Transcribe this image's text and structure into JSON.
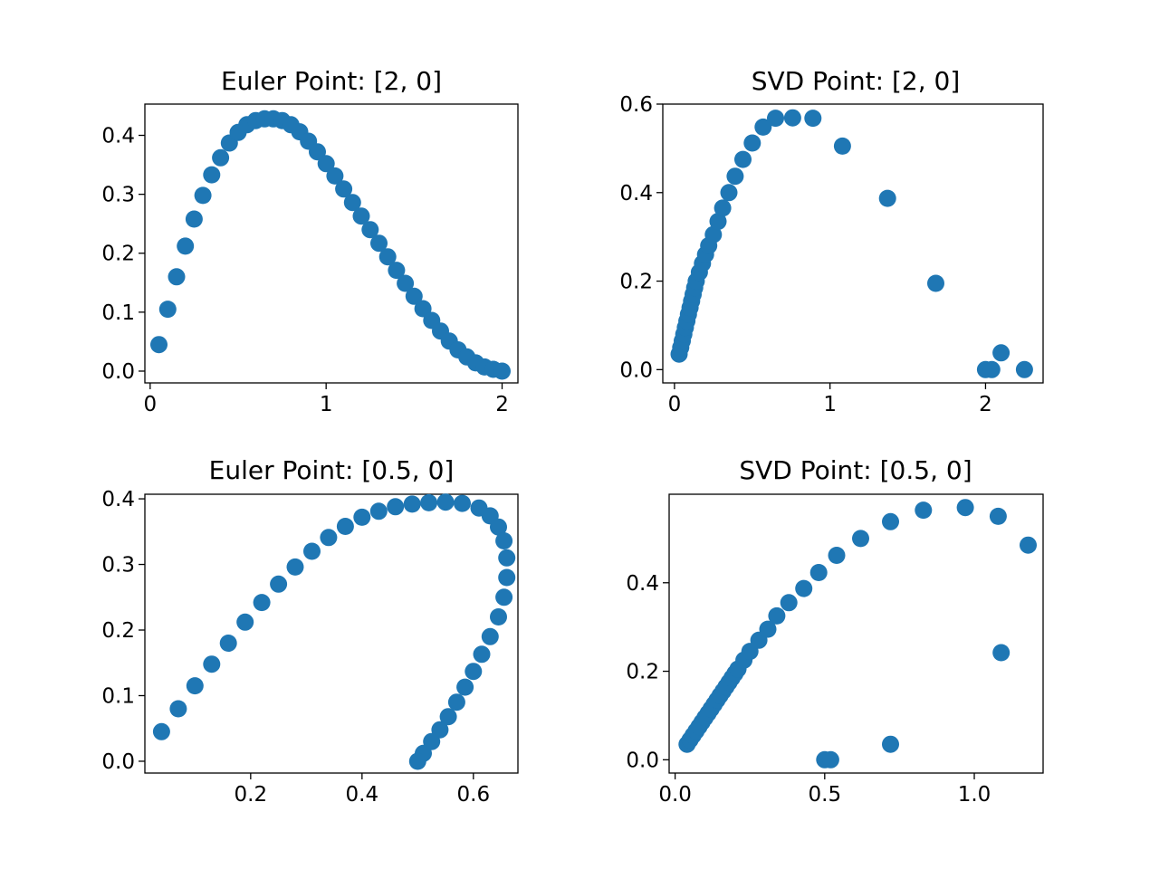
{
  "chart_data": [
    {
      "type": "scatter",
      "title": "Euler Point: [2, 0]",
      "xlabel": "",
      "ylabel": "",
      "xlim": [
        -0.03,
        2.09
      ],
      "ylim": [
        -0.02,
        0.453
      ],
      "xticks": [
        0,
        1,
        2
      ],
      "xtick_labels": [
        "0",
        "1",
        "2"
      ],
      "yticks": [
        0.0,
        0.1,
        0.2,
        0.3,
        0.4
      ],
      "ytick_labels": [
        "0.0",
        "0.1",
        "0.2",
        "0.3",
        "0.4"
      ],
      "grid": false,
      "color": "#1f77b4",
      "series": [
        {
          "x": [
            0.05,
            0.1,
            0.15,
            0.2,
            0.25,
            0.3,
            0.35,
            0.4,
            0.45,
            0.5,
            0.55,
            0.6,
            0.65,
            0.7,
            0.75,
            0.8,
            0.85,
            0.9,
            0.95,
            1.0,
            1.05,
            1.1,
            1.15,
            1.2,
            1.25,
            1.3,
            1.35,
            1.4,
            1.45,
            1.5,
            1.55,
            1.6,
            1.65,
            1.7,
            1.75,
            1.8,
            1.85,
            1.9,
            1.95,
            2.0
          ],
          "y": [
            0.045,
            0.105,
            0.16,
            0.212,
            0.258,
            0.298,
            0.333,
            0.362,
            0.387,
            0.405,
            0.418,
            0.425,
            0.428,
            0.428,
            0.425,
            0.418,
            0.406,
            0.39,
            0.372,
            0.352,
            0.331,
            0.309,
            0.286,
            0.263,
            0.24,
            0.217,
            0.194,
            0.171,
            0.149,
            0.127,
            0.106,
            0.086,
            0.068,
            0.051,
            0.036,
            0.024,
            0.014,
            0.007,
            0.003,
            0.0
          ]
        }
      ]
    },
    {
      "type": "scatter",
      "title": "SVD Point: [2, 0]",
      "xlabel": "",
      "ylabel": "",
      "xlim": [
        -0.075,
        2.37
      ],
      "ylim": [
        -0.03,
        0.6
      ],
      "xticks": [
        0,
        1,
        2
      ],
      "xtick_labels": [
        "0",
        "1",
        "2"
      ],
      "yticks": [
        0.0,
        0.2,
        0.4,
        0.6
      ],
      "ytick_labels": [
        "0.0",
        "0.2",
        "0.4",
        "0.6"
      ],
      "grid": false,
      "color": "#1f77b4",
      "series": [
        {
          "x": [
            0.03,
            0.04,
            0.05,
            0.06,
            0.07,
            0.08,
            0.09,
            0.1,
            0.11,
            0.12,
            0.13,
            0.14,
            0.16,
            0.18,
            0.2,
            0.22,
            0.25,
            0.28,
            0.31,
            0.35,
            0.39,
            0.44,
            0.5,
            0.57,
            0.65,
            0.76,
            0.89,
            1.08,
            1.37,
            1.68,
            2.1,
            2.25,
            2.0,
            2.04
          ],
          "y": [
            0.035,
            0.05,
            0.065,
            0.08,
            0.095,
            0.11,
            0.125,
            0.14,
            0.155,
            0.17,
            0.185,
            0.2,
            0.22,
            0.24,
            0.26,
            0.28,
            0.305,
            0.335,
            0.365,
            0.4,
            0.437,
            0.475,
            0.512,
            0.548,
            0.568,
            0.569,
            0.568,
            0.505,
            0.387,
            0.195,
            0.038,
            0.0,
            0.0,
            0.0
          ]
        }
      ]
    },
    {
      "type": "scatter",
      "title": "Euler Point: [0.5, 0]",
      "xlabel": "",
      "ylabel": "",
      "xlim": [
        0.01,
        0.68
      ],
      "ylim": [
        -0.018,
        0.407
      ],
      "xticks": [
        0.2,
        0.4,
        0.6
      ],
      "xtick_labels": [
        "0.2",
        "0.4",
        "0.6"
      ],
      "yticks": [
        0.0,
        0.1,
        0.2,
        0.3,
        0.4
      ],
      "ytick_labels": [
        "0.0",
        "0.1",
        "0.2",
        "0.3",
        "0.4"
      ],
      "grid": false,
      "color": "#1f77b4",
      "series": [
        {
          "x": [
            0.04,
            0.07,
            0.1,
            0.13,
            0.16,
            0.19,
            0.22,
            0.25,
            0.28,
            0.31,
            0.34,
            0.37,
            0.4,
            0.43,
            0.46,
            0.49,
            0.52,
            0.55,
            0.58,
            0.61,
            0.63,
            0.645,
            0.655,
            0.66,
            0.66,
            0.655,
            0.645,
            0.63,
            0.615,
            0.6,
            0.585,
            0.57,
            0.555,
            0.54,
            0.525,
            0.51,
            0.5
          ],
          "y": [
            0.045,
            0.08,
            0.115,
            0.148,
            0.18,
            0.212,
            0.242,
            0.27,
            0.296,
            0.32,
            0.341,
            0.358,
            0.372,
            0.381,
            0.388,
            0.392,
            0.394,
            0.395,
            0.393,
            0.386,
            0.374,
            0.357,
            0.336,
            0.31,
            0.28,
            0.25,
            0.22,
            0.19,
            0.163,
            0.137,
            0.113,
            0.09,
            0.068,
            0.048,
            0.03,
            0.012,
            0.0
          ]
        }
      ]
    },
    {
      "type": "scatter",
      "title": "SVD Point: [0.5, 0]",
      "xlabel": "",
      "ylabel": "",
      "xlim": [
        -0.02,
        1.23
      ],
      "ylim": [
        -0.03,
        0.6
      ],
      "xticks": [
        0.0,
        0.5,
        1.0
      ],
      "xtick_labels": [
        "0.0",
        "0.5",
        "1.0"
      ],
      "yticks": [
        0.0,
        0.2,
        0.4
      ],
      "ytick_labels": [
        "0.0",
        "0.2",
        "0.4"
      ],
      "grid": false,
      "color": "#1f77b4",
      "series": [
        {
          "x": [
            0.04,
            0.05,
            0.06,
            0.07,
            0.08,
            0.09,
            0.1,
            0.11,
            0.12,
            0.13,
            0.14,
            0.15,
            0.16,
            0.17,
            0.18,
            0.19,
            0.2,
            0.21,
            0.23,
            0.25,
            0.28,
            0.31,
            0.34,
            0.38,
            0.43,
            0.48,
            0.54,
            0.62,
            0.72,
            0.83,
            0.97,
            1.08,
            1.18,
            1.09,
            0.72,
            0.5,
            0.52
          ],
          "y": [
            0.035,
            0.045,
            0.055,
            0.065,
            0.075,
            0.085,
            0.095,
            0.105,
            0.115,
            0.125,
            0.135,
            0.145,
            0.155,
            0.165,
            0.175,
            0.185,
            0.195,
            0.205,
            0.225,
            0.245,
            0.27,
            0.295,
            0.325,
            0.355,
            0.387,
            0.423,
            0.462,
            0.5,
            0.538,
            0.564,
            0.57,
            0.55,
            0.485,
            0.242,
            0.035,
            0.0,
            0.0
          ]
        }
      ]
    }
  ]
}
